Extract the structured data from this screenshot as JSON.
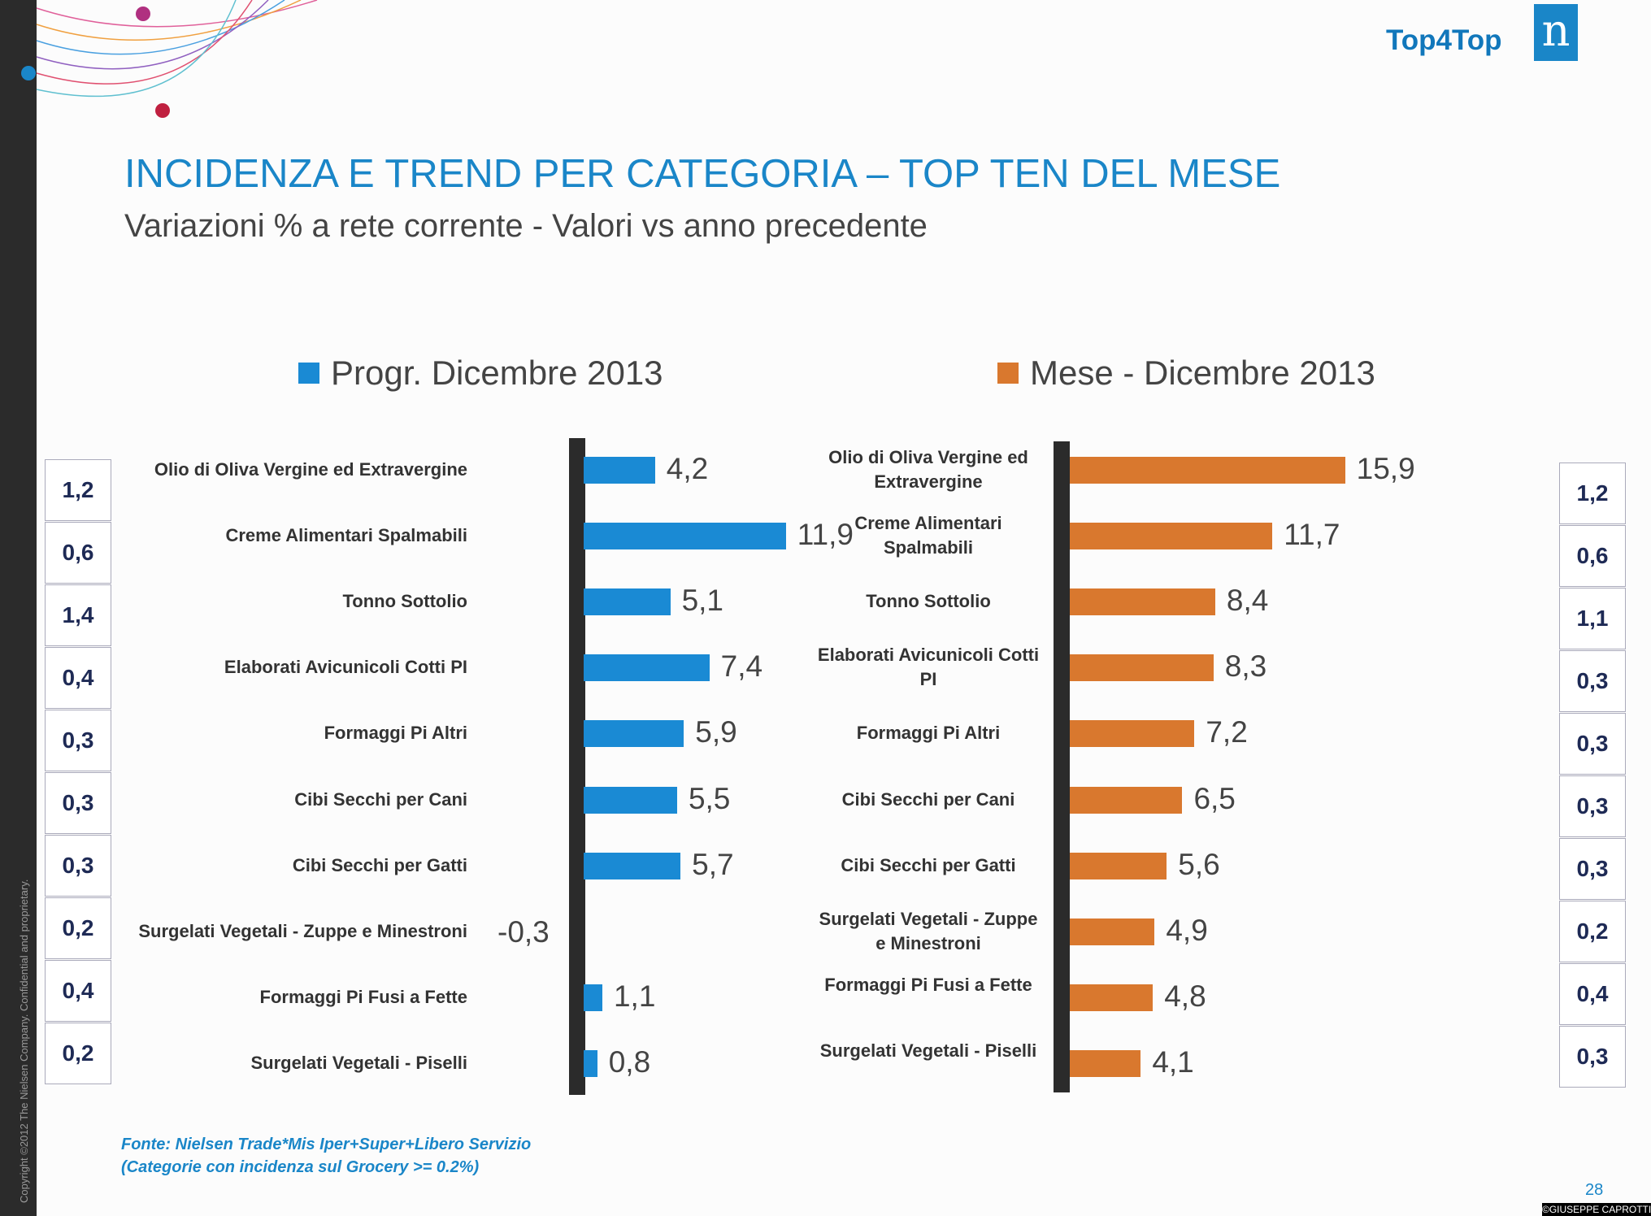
{
  "header": {
    "brand": "Top4Top",
    "logo_letter": "n"
  },
  "title": "INCIDENZA E TREND PER CATEGORIA – TOP TEN DEL MESE",
  "subtitle": "Variazioni % a rete corrente - Valori vs anno precedente",
  "chart_data": [
    {
      "type": "bar",
      "orientation": "horizontal",
      "series": [
        {
          "name": "Progr. Dicembre 2013",
          "color": "#1a8ad4",
          "values": [
            4.2,
            11.9,
            5.1,
            7.4,
            5.9,
            5.5,
            5.7,
            -0.3,
            1.1,
            0.8
          ],
          "labels": [
            "4,2",
            "11,9",
            "5,1",
            "7,4",
            "5,9",
            "5,5",
            "5,7",
            "-0,3",
            "1,1",
            "0,8"
          ]
        }
      ],
      "categories": [
        "Olio di Oliva Vergine ed Extravergine",
        "Creme Alimentari Spalmabili",
        "Tonno Sottolio",
        "Elaborati Avicunicoli Cotti PI",
        "Formaggi Pi Altri",
        "Cibi Secchi per Cani",
        "Cibi Secchi per Gatti",
        "Surgelati Vegetali - Zuppe e Minestroni",
        "Formaggi Pi Fusi a Fette",
        "Surgelati Vegetali - Piselli"
      ],
      "side_values": [
        "1,2",
        "0,6",
        "1,4",
        "0,4",
        "0,3",
        "0,3",
        "0,3",
        "0,2",
        "0,4",
        "0,2"
      ]
    },
    {
      "type": "bar",
      "orientation": "horizontal",
      "series": [
        {
          "name": "Mese - Dicembre 2013",
          "color": "#d9782e",
          "values": [
            15.9,
            11.7,
            8.4,
            8.3,
            7.2,
            6.5,
            5.6,
            4.9,
            4.8,
            4.1
          ],
          "labels": [
            "15,9",
            "11,7",
            "8,4",
            "8,3",
            "7,2",
            "6,5",
            "5,6",
            "4,9",
            "4,8",
            "4,1"
          ]
        }
      ],
      "categories": [
        "Olio di Oliva Vergine ed Extravergine",
        "Creme Alimentari Spalmabili",
        "Tonno Sottolio",
        "Elaborati Avicunicoli Cotti PI",
        "Formaggi Pi Altri",
        "Cibi Secchi per Cani",
        "Cibi Secchi per Gatti",
        "Surgelati Vegetali - Zuppe e Minestroni",
        "Formaggi Pi Fusi a Fette",
        "Surgelati Vegetali - Piselli"
      ],
      "side_values": [
        "1,2",
        "0,6",
        "1,1",
        "0,3",
        "0,3",
        "0,3",
        "0,3",
        "0,2",
        "0,4",
        "0,3"
      ]
    }
  ],
  "footer": {
    "source": "Fonte: Nielsen Trade*Mis  Iper+Super+Libero Servizio",
    "note": "(Categorie con incidenza sul Grocery >= 0.2%)",
    "page": "28",
    "copyright": "Copyright ©2012 The Nielsen Company. Confidential and proprietary.",
    "watermark": "©GIUSEPPE CAPROTTI"
  }
}
